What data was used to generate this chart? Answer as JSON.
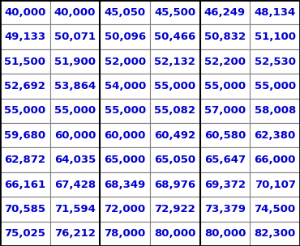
{
  "table_data": [
    [
      "40,000",
      "40,000",
      "45,050",
      "45,500",
      "46,249",
      "48,134"
    ],
    [
      "49,133",
      "50,071",
      "50,096",
      "50,466",
      "50,832",
      "51,100"
    ],
    [
      "51,500",
      "51,900",
      "52,000",
      "52,132",
      "52,200",
      "52,530"
    ],
    [
      "52,692",
      "53,864",
      "54,000",
      "55,000",
      "55,000",
      "55,000"
    ],
    [
      "55,000",
      "55,000",
      "55,000",
      "55,082",
      "57,000",
      "58,008"
    ],
    [
      "59,680",
      "60,000",
      "60,000",
      "60,492",
      "60,580",
      "62,380"
    ],
    [
      "62,872",
      "64,035",
      "65,000",
      "65,050",
      "65,647",
      "66,000"
    ],
    [
      "66,161",
      "67,428",
      "68,349",
      "68,976",
      "69,372",
      "70,107"
    ],
    [
      "70,585",
      "71,594",
      "72,000",
      "72,922",
      "73,379",
      "74,500"
    ],
    [
      "75,025",
      "76,212",
      "78,000",
      "80,000",
      "80,000",
      "82,300"
    ]
  ],
  "text_color": "#0000CC",
  "edge_color": "#808080",
  "thick_edge_color": "#000000",
  "bg_color": "#FFFFFF",
  "font_size": 9.5,
  "n_rows": 10,
  "n_cols": 6,
  "thick_col_after": [
    1,
    3
  ],
  "fig_width": 3.7,
  "fig_height": 3.04,
  "dpi": 100
}
